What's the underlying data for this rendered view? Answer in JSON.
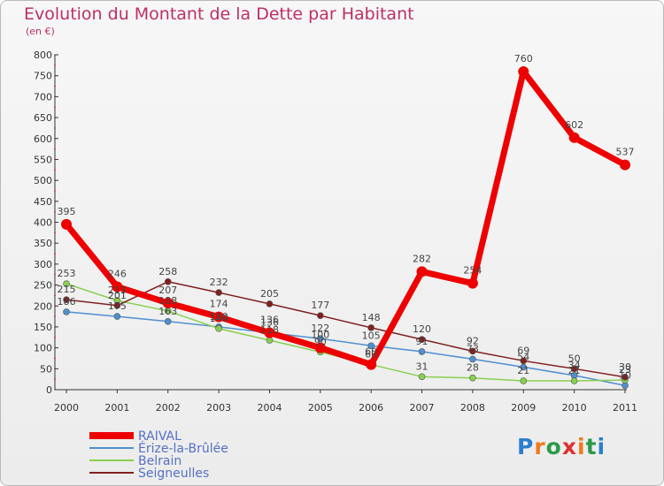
{
  "header": {
    "title": "Evolution du Montant de la Dette par Habitant",
    "subtitle": "(en €)"
  },
  "brand": {
    "logo_text": "Proxiti"
  },
  "chart_data": {
    "type": "line",
    "title": "Evolution du Montant de la Dette par Habitant",
    "ylabel": "(en €)",
    "xlabel": "",
    "x": [
      "2000",
      "2001",
      "2002",
      "2003",
      "2004",
      "2005",
      "2006",
      "2007",
      "2008",
      "2009",
      "2010",
      "2011"
    ],
    "ylim": [
      0,
      800
    ],
    "yticks": [
      0,
      50,
      100,
      150,
      200,
      250,
      300,
      350,
      400,
      450,
      500,
      550,
      600,
      650,
      700,
      750,
      800
    ],
    "grid": false,
    "legend_position": "bottom-left",
    "series": [
      {
        "name": "RAIVAL",
        "color": "#ee0000",
        "values": [
          395,
          246,
          207,
          174,
          136,
          100,
          60,
          282,
          254,
          760,
          602,
          537
        ]
      },
      {
        "name": "Érize-la-Brûlée",
        "color": "#4f8fd0",
        "values": [
          186,
          175,
          163,
          150,
          136,
          122,
          105,
          91,
          73,
          54,
          34,
          10
        ]
      },
      {
        "name": "Belrain",
        "color": "#88d050",
        "values": [
          253,
          213,
          188,
          146,
          118,
          90,
          60,
          31,
          28,
          21,
          21,
          23
        ]
      },
      {
        "name": "Seigneulles",
        "color": "#802020",
        "values": [
          215,
          201,
          258,
          232,
          205,
          177,
          148,
          120,
          92,
          69,
          50,
          30
        ]
      }
    ]
  }
}
